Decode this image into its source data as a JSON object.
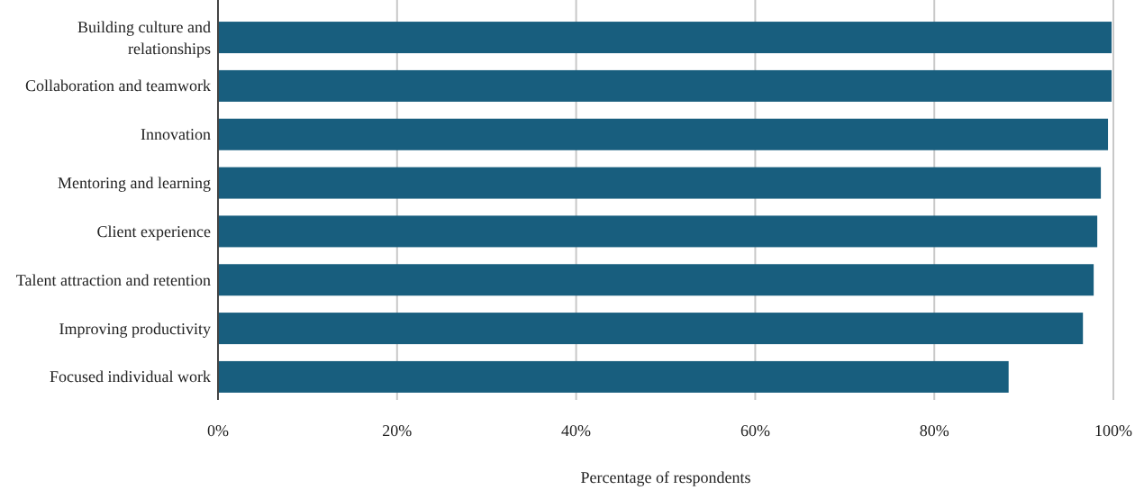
{
  "chart_data": {
    "type": "bar",
    "orientation": "horizontal",
    "xlabel": "Percentage of respondents",
    "categories": [
      "Building culture and relationships",
      "Collaboration and teamwork",
      "Innovation",
      "Mentoring and learning",
      "Client experience",
      "Talent attraction and retention",
      "Improving productivity",
      "Focused individual work"
    ],
    "values": [
      99.8,
      99.8,
      99.4,
      98.6,
      98.2,
      97.8,
      96.6,
      88.3
    ],
    "color": "#185e7e",
    "xlim": [
      0,
      100
    ],
    "xticks": [
      {
        "value": 0,
        "label": "0%"
      },
      {
        "value": 20,
        "label": "20%"
      },
      {
        "value": 40,
        "label": "40%"
      },
      {
        "value": 60,
        "label": "60%"
      },
      {
        "value": 80,
        "label": "80%"
      },
      {
        "value": 100,
        "label": "100%"
      }
    ],
    "grid": "x"
  }
}
